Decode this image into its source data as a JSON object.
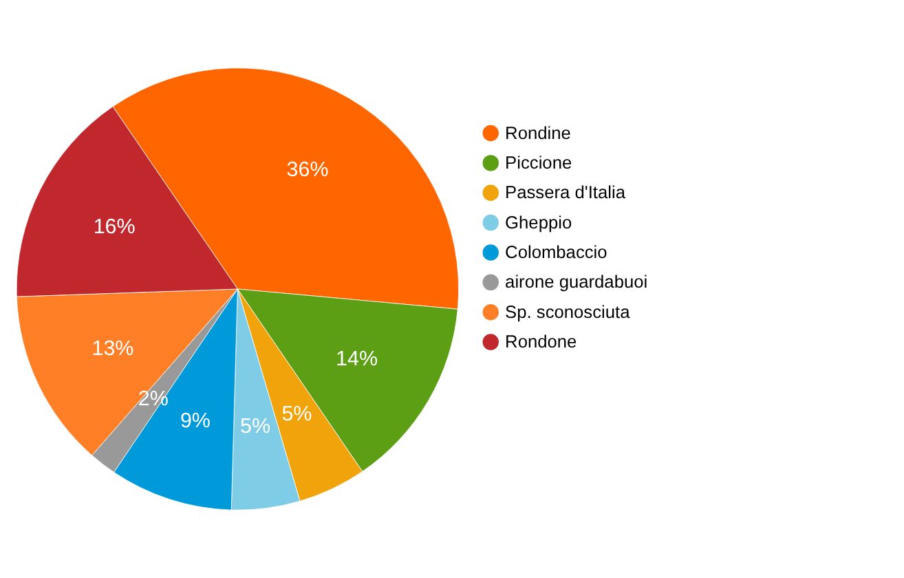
{
  "chart_data": {
    "type": "pie",
    "categories": [
      "Rondine",
      "Piccione",
      "Passera d'Italia",
      "Gheppio",
      "Colombaccio",
      "airone guardabuoi",
      "Sp. sconosciuta",
      "Rondone"
    ],
    "values": [
      36,
      14,
      5,
      5,
      9,
      2,
      13,
      16
    ],
    "colors": [
      "#ff6600",
      "#5c9e14",
      "#f0a30a",
      "#7ecce6",
      "#0099d9",
      "#999999",
      "#ff7f27",
      "#c0282e"
    ],
    "value_labels": [
      "36%",
      "14%",
      "5%",
      "5%",
      "9%",
      "2%",
      "13%",
      "16%"
    ],
    "legend": "right"
  }
}
